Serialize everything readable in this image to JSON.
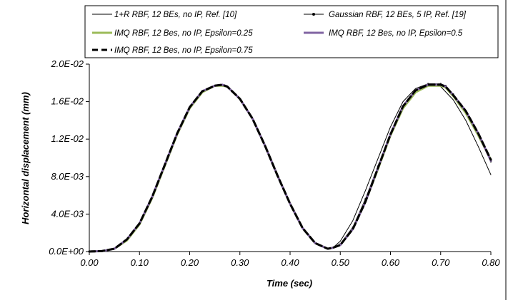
{
  "chart_data": {
    "type": "line",
    "title": "",
    "xlabel": "Time (sec)",
    "ylabel": "Horizontal displacement (mm)",
    "xlim": [
      0,
      0.8
    ],
    "ylim": [
      0,
      0.02
    ],
    "x_ticks": [
      "0.00",
      "0.10",
      "0.20",
      "0.30",
      "0.40",
      "0.50",
      "0.60",
      "0.70",
      "0.80"
    ],
    "y_ticks": [
      "0.0E+00",
      "4.0E-03",
      "8.0E-03",
      "1.2E-02",
      "1.6E-02",
      "2.0E-02"
    ],
    "grid": false,
    "legend_position": "top",
    "series": [
      {
        "name": "1+R RBF, 12 BEs, no IP, Ref. [10]",
        "color": "#000000",
        "style": "thin-solid",
        "x": [
          0,
          0.025,
          0.05,
          0.075,
          0.1,
          0.125,
          0.15,
          0.175,
          0.2,
          0.225,
          0.25,
          0.265,
          0.275,
          0.3,
          0.325,
          0.35,
          0.375,
          0.4,
          0.425,
          0.45,
          0.475,
          0.485,
          0.5,
          0.525,
          0.55,
          0.575,
          0.6,
          0.625,
          0.65,
          0.675,
          0.69,
          0.7,
          0.725,
          0.75,
          0.775,
          0.8
        ],
        "y": [
          0,
          5e-05,
          0.0003,
          0.0013,
          0.003,
          0.0058,
          0.0092,
          0.0126,
          0.0154,
          0.0171,
          0.0177,
          0.0178,
          0.0176,
          0.0163,
          0.0142,
          0.0113,
          0.0081,
          0.0051,
          0.0025,
          0.0009,
          0.0003,
          0.0004,
          0.0011,
          0.0033,
          0.0065,
          0.0099,
          0.0133,
          0.016,
          0.0174,
          0.0179,
          0.0179,
          0.0176,
          0.0162,
          0.014,
          0.0112,
          0.0082
        ]
      },
      {
        "name": "Gaussian RBF, 12 BEs, 5 IP, Ref. [19]",
        "color": "#000000",
        "style": "thin-solid-dots",
        "x": [
          0,
          0.025,
          0.05,
          0.075,
          0.1,
          0.125,
          0.15,
          0.175,
          0.2,
          0.225,
          0.25,
          0.265,
          0.275,
          0.3,
          0.325,
          0.35,
          0.375,
          0.4,
          0.425,
          0.45,
          0.475,
          0.485,
          0.5,
          0.525,
          0.55,
          0.575,
          0.6,
          0.625,
          0.65,
          0.675,
          0.7,
          0.71,
          0.725,
          0.75,
          0.775,
          0.8
        ],
        "y": [
          0,
          5e-05,
          0.0003,
          0.0013,
          0.003,
          0.0058,
          0.0092,
          0.0126,
          0.0154,
          0.0171,
          0.0177,
          0.0178,
          0.0176,
          0.0163,
          0.0142,
          0.0113,
          0.0081,
          0.0051,
          0.0025,
          0.0009,
          0.0003,
          0.0004,
          0.0008,
          0.0026,
          0.0056,
          0.0091,
          0.0126,
          0.0155,
          0.0172,
          0.0179,
          0.0179,
          0.0177,
          0.0168,
          0.0149,
          0.0124,
          0.0096
        ]
      },
      {
        "name": "IMQ RBF, 12 Bes, no IP, Epsilon=0.25",
        "color": "#9bbb59",
        "style": "thick-solid",
        "x": [
          0,
          0.025,
          0.05,
          0.075,
          0.1,
          0.125,
          0.15,
          0.175,
          0.2,
          0.225,
          0.25,
          0.265,
          0.275,
          0.3,
          0.325,
          0.35,
          0.375,
          0.4,
          0.425,
          0.45,
          0.475,
          0.485,
          0.5,
          0.525,
          0.55,
          0.575,
          0.6,
          0.625,
          0.65,
          0.675,
          0.7,
          0.71,
          0.725,
          0.75,
          0.775,
          0.8
        ],
        "y": [
          0,
          5e-05,
          0.0003,
          0.0012,
          0.0029,
          0.0057,
          0.0091,
          0.0125,
          0.0153,
          0.017,
          0.0177,
          0.0177,
          0.0176,
          0.0163,
          0.0142,
          0.0113,
          0.0081,
          0.0051,
          0.0025,
          0.0009,
          0.0003,
          0.0004,
          0.0007,
          0.0024,
          0.0053,
          0.0088,
          0.0124,
          0.0153,
          0.017,
          0.0177,
          0.0177,
          0.0175,
          0.0166,
          0.0148,
          0.0124,
          0.0098
        ]
      },
      {
        "name": "IMQ RBF, 12 Bes, no IP, Epsilon=0.5",
        "color": "#8064a2",
        "style": "thick-solid",
        "x": [
          0,
          0.025,
          0.05,
          0.075,
          0.1,
          0.125,
          0.15,
          0.175,
          0.2,
          0.225,
          0.25,
          0.265,
          0.275,
          0.3,
          0.325,
          0.35,
          0.375,
          0.4,
          0.425,
          0.45,
          0.475,
          0.485,
          0.5,
          0.525,
          0.55,
          0.575,
          0.6,
          0.625,
          0.65,
          0.675,
          0.7,
          0.71,
          0.725,
          0.75,
          0.775,
          0.8
        ],
        "y": [
          0,
          5e-05,
          0.0003,
          0.0013,
          0.003,
          0.0058,
          0.0092,
          0.0126,
          0.0154,
          0.0171,
          0.0177,
          0.0178,
          0.0176,
          0.0163,
          0.0142,
          0.0113,
          0.0081,
          0.0051,
          0.0025,
          0.0009,
          0.0003,
          0.0004,
          0.0007,
          0.0024,
          0.0053,
          0.0089,
          0.0125,
          0.0155,
          0.0172,
          0.0178,
          0.0178,
          0.0176,
          0.0167,
          0.015,
          0.0126,
          0.0097
        ]
      },
      {
        "name": "IMQ RBF, 12 Bes, no IP, Epsilon=0.75",
        "color": "#000000",
        "style": "thick-dashed",
        "x": [
          0,
          0.025,
          0.05,
          0.075,
          0.1,
          0.125,
          0.15,
          0.175,
          0.2,
          0.225,
          0.25,
          0.265,
          0.275,
          0.3,
          0.325,
          0.35,
          0.375,
          0.4,
          0.425,
          0.45,
          0.475,
          0.485,
          0.5,
          0.525,
          0.55,
          0.575,
          0.6,
          0.625,
          0.65,
          0.675,
          0.7,
          0.71,
          0.725,
          0.75,
          0.775,
          0.8
        ],
        "y": [
          0,
          5e-05,
          0.0003,
          0.0013,
          0.003,
          0.0058,
          0.0092,
          0.0126,
          0.0154,
          0.0171,
          0.0177,
          0.0178,
          0.0176,
          0.0163,
          0.0142,
          0.0113,
          0.0081,
          0.0051,
          0.0025,
          0.0009,
          0.0003,
          0.0004,
          0.0007,
          0.0024,
          0.0053,
          0.0089,
          0.0125,
          0.0155,
          0.0172,
          0.0178,
          0.0178,
          0.0176,
          0.0167,
          0.015,
          0.0126,
          0.0098
        ]
      }
    ]
  }
}
